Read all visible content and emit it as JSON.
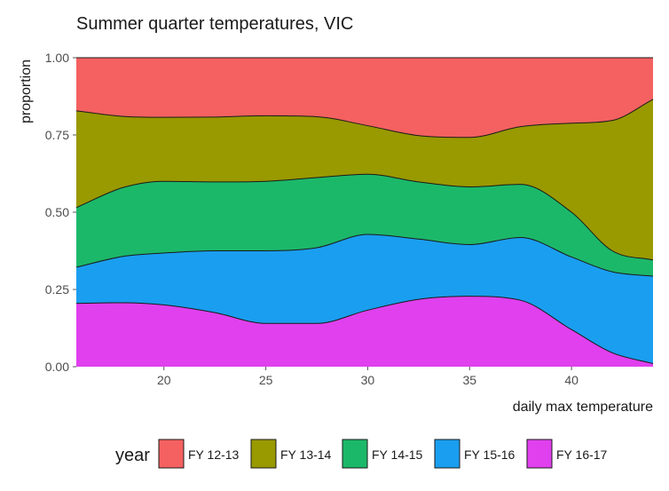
{
  "chart_data": {
    "type": "area",
    "stacked": "proportion",
    "title": "Summer quarter temperatures, VIC",
    "xlabel": "daily max temperature",
    "ylabel": "proportion",
    "xlim": [
      15.7,
      44
    ],
    "ylim": [
      0,
      1
    ],
    "x_ticks": [
      20,
      25,
      30,
      35,
      40
    ],
    "y_ticks": [
      0,
      0.25,
      0.5,
      0.75,
      1
    ],
    "y_tick_labels": [
      "0.00",
      "0.25",
      "0.50",
      "0.75",
      "1.00"
    ],
    "grid": false,
    "legend": {
      "title": "year",
      "position": "bottom"
    },
    "x": [
      15.7,
      18,
      20,
      22.5,
      25,
      27.5,
      30,
      32.5,
      35,
      37.5,
      40,
      42,
      44
    ],
    "series": [
      {
        "name": "FY 16-17",
        "color": "#E040EE",
        "values": [
          0.205,
          0.207,
          0.2,
          0.175,
          0.14,
          0.14,
          0.183,
          0.218,
          0.228,
          0.215,
          0.12,
          0.045,
          0.01
        ]
      },
      {
        "name": "FY 15-16",
        "color": "#1A9EF0",
        "values": [
          0.117,
          0.15,
          0.168,
          0.2,
          0.235,
          0.245,
          0.245,
          0.195,
          0.167,
          0.203,
          0.235,
          0.262,
          0.283
        ]
      },
      {
        "name": "FY 14-15",
        "color": "#1CB86A",
        "values": [
          0.193,
          0.223,
          0.232,
          0.223,
          0.225,
          0.227,
          0.195,
          0.185,
          0.187,
          0.172,
          0.145,
          0.068,
          0.052
        ]
      },
      {
        "name": "FY 13-14",
        "color": "#999900",
        "values": [
          0.313,
          0.23,
          0.207,
          0.21,
          0.212,
          0.197,
          0.157,
          0.15,
          0.16,
          0.187,
          0.288,
          0.422,
          0.52
        ]
      },
      {
        "name": "FY 12-13",
        "color": "#F46160",
        "values": [
          0.172,
          0.19,
          0.193,
          0.192,
          0.188,
          0.191,
          0.22,
          0.252,
          0.258,
          0.223,
          0.212,
          0.203,
          0.135
        ]
      }
    ]
  }
}
